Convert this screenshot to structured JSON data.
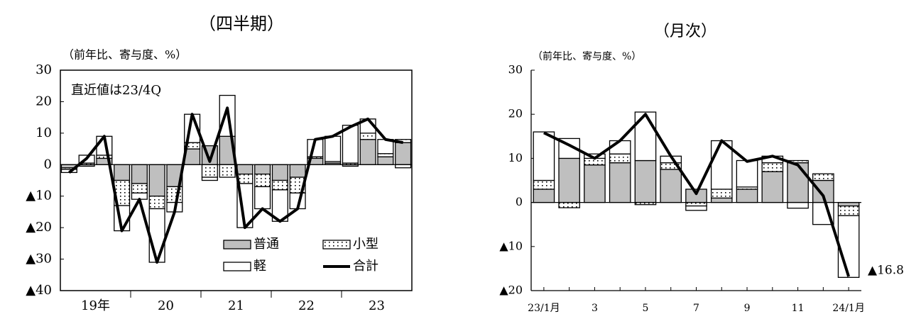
{
  "chart_data": [
    {
      "type": "bar",
      "title": "（四半期）",
      "y_axis_label": "（前年比、寄与度、%）",
      "annotation": "直近値は23/4Q",
      "categories": [
        null,
        "19年",
        null,
        null,
        null,
        "20",
        null,
        null,
        null,
        "21",
        null,
        null,
        null,
        "22",
        null,
        null,
        null,
        "23",
        null,
        null
      ],
      "series": [
        {
          "name": "普通",
          "color": "#bfbfbf",
          "values": [
            -1,
            -0.5,
            2,
            -5,
            -6,
            -10,
            -7,
            5,
            6,
            9,
            -3,
            -3,
            -5,
            -4,
            2,
            0.5,
            -0.5,
            8,
            2.5,
            7
          ]
        },
        {
          "name": "小型",
          "color": "#ffffff",
          "pattern": "dots",
          "values": [
            -0.5,
            0.5,
            1,
            -8,
            -3,
            -4,
            -5,
            2,
            -4,
            -4,
            -3,
            -4,
            -3,
            -5,
            0.5,
            0.5,
            0.5,
            2,
            1,
            1
          ]
        },
        {
          "name": "軽",
          "color": "#ffffff",
          "values": [
            -1,
            2.5,
            6,
            -8,
            -2,
            -17,
            -3,
            9,
            -1,
            13,
            -14,
            -7,
            -10,
            -5,
            5.5,
            8,
            12,
            4.5,
            4.5,
            -1
          ]
        },
        {
          "name": "合計",
          "color": "#000000",
          "type": "line",
          "values": [
            -2.5,
            2,
            9,
            -21,
            -11,
            -31,
            -15,
            16,
            1,
            18,
            -20,
            -14,
            -18,
            -14,
            8,
            9,
            12,
            14.5,
            8,
            7
          ]
        }
      ],
      "ylim": [
        -40,
        30
      ],
      "yticks": [
        30,
        20,
        10,
        0,
        {
          "value": -10,
          "label": "▲10"
        },
        {
          "value": -20,
          "label": "▲20"
        },
        {
          "value": -30,
          "label": "▲30"
        },
        {
          "value": -40,
          "label": "▲40"
        }
      ],
      "legend": "lower right",
      "grid": false
    },
    {
      "type": "bar",
      "title": "（月次）",
      "y_axis_label": "（前年比、寄与度、%）",
      "annotation": "▲16.8",
      "categories": [
        "23/1月",
        null,
        "3",
        null,
        "5",
        null,
        "7",
        null,
        "9",
        null,
        "11",
        null,
        "24/1月"
      ],
      "series": [
        {
          "color": "#bfbfbf",
          "values": [
            3,
            10,
            8.5,
            9,
            9.5,
            7.5,
            3,
            1,
            3,
            7,
            9,
            5,
            -0.8
          ]
        },
        {
          "color": "#ffffff",
          "pattern": "dots",
          "values": [
            2,
            -1.2,
            1.5,
            2,
            -0.5,
            1.5,
            -0.8,
            2,
            0.5,
            2,
            0.5,
            1.5,
            -2.2
          ]
        },
        {
          "color": "#ffffff",
          "values": [
            11,
            4.5,
            1,
            3,
            11,
            1.5,
            -1,
            11,
            6,
            1.5,
            -1.3,
            -5,
            -14
          ]
        },
        {
          "color": "#000000",
          "type": "line",
          "values": [
            15.8,
            13,
            10,
            14,
            20,
            10.5,
            2,
            14,
            9.3,
            10.5,
            8.5,
            1.5,
            -16.8
          ]
        }
      ],
      "ylim": [
        -20,
        30
      ],
      "yticks": [
        30,
        20,
        10,
        0,
        {
          "value": -10,
          "label": "▲10"
        },
        {
          "value": -20,
          "label": "▲20"
        }
      ],
      "grid": false
    }
  ]
}
